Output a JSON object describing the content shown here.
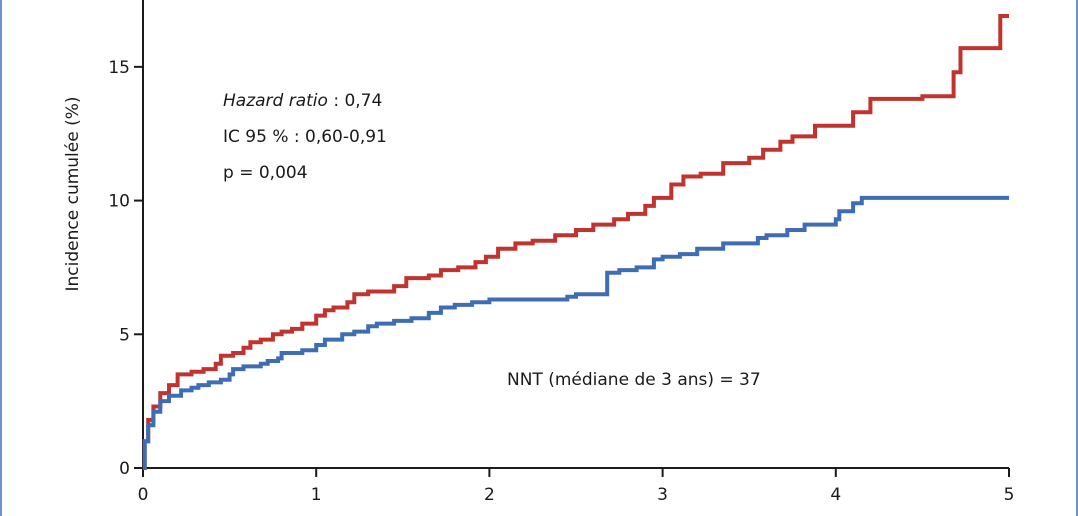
{
  "chart_data": {
    "type": "line",
    "step": true,
    "ylabel": "Incidence cumulée (%)",
    "xlabel": "",
    "xlim": [
      0,
      5
    ],
    "ylim": [
      0,
      17.5
    ],
    "x_ticks": [
      "0",
      "1",
      "2",
      "3",
      "4",
      "5"
    ],
    "y_ticks": [
      "0",
      "5",
      "10",
      "15"
    ],
    "colors": {
      "red": "#c0332e",
      "blue": "#3e6db5"
    },
    "annotations": {
      "hazard_ratio_label": "Hazard ratio",
      "hazard_ratio_value": " : 0,74",
      "ci": "IC 95 % : 0,60-0,91",
      "p": "p = 0,004",
      "nnt": "NNT (médiane de 3 ans) = 37"
    },
    "series": [
      {
        "color": "red",
        "points": [
          [
            0,
            0
          ],
          [
            0.01,
            1.0
          ],
          [
            0.03,
            1.8
          ],
          [
            0.06,
            2.3
          ],
          [
            0.1,
            2.8
          ],
          [
            0.15,
            3.1
          ],
          [
            0.2,
            3.5
          ],
          [
            0.28,
            3.6
          ],
          [
            0.35,
            3.7
          ],
          [
            0.42,
            3.9
          ],
          [
            0.45,
            4.2
          ],
          [
            0.52,
            4.3
          ],
          [
            0.58,
            4.5
          ],
          [
            0.62,
            4.7
          ],
          [
            0.68,
            4.8
          ],
          [
            0.75,
            5.0
          ],
          [
            0.8,
            5.1
          ],
          [
            0.86,
            5.2
          ],
          [
            0.92,
            5.4
          ],
          [
            1.0,
            5.7
          ],
          [
            1.05,
            5.9
          ],
          [
            1.1,
            6.0
          ],
          [
            1.18,
            6.2
          ],
          [
            1.22,
            6.5
          ],
          [
            1.3,
            6.6
          ],
          [
            1.45,
            6.8
          ],
          [
            1.52,
            7.1
          ],
          [
            1.65,
            7.2
          ],
          [
            1.72,
            7.4
          ],
          [
            1.82,
            7.5
          ],
          [
            1.92,
            7.7
          ],
          [
            1.98,
            7.9
          ],
          [
            2.05,
            8.2
          ],
          [
            2.15,
            8.4
          ],
          [
            2.25,
            8.5
          ],
          [
            2.38,
            8.7
          ],
          [
            2.5,
            8.9
          ],
          [
            2.6,
            9.1
          ],
          [
            2.72,
            9.3
          ],
          [
            2.8,
            9.5
          ],
          [
            2.9,
            9.8
          ],
          [
            2.95,
            10.1
          ],
          [
            3.05,
            10.6
          ],
          [
            3.12,
            10.9
          ],
          [
            3.22,
            11.0
          ],
          [
            3.35,
            11.4
          ],
          [
            3.5,
            11.6
          ],
          [
            3.58,
            11.9
          ],
          [
            3.68,
            12.2
          ],
          [
            3.75,
            12.4
          ],
          [
            3.88,
            12.8
          ],
          [
            4.1,
            13.3
          ],
          [
            4.2,
            13.8
          ],
          [
            4.5,
            13.9
          ],
          [
            4.68,
            14.8
          ],
          [
            4.72,
            15.7
          ],
          [
            4.95,
            16.9
          ],
          [
            5.0,
            16.9
          ]
        ]
      },
      {
        "color": "blue",
        "points": [
          [
            0,
            0
          ],
          [
            0.01,
            1.0
          ],
          [
            0.03,
            1.6
          ],
          [
            0.06,
            2.1
          ],
          [
            0.1,
            2.5
          ],
          [
            0.15,
            2.7
          ],
          [
            0.22,
            2.9
          ],
          [
            0.28,
            3.0
          ],
          [
            0.32,
            3.1
          ],
          [
            0.38,
            3.2
          ],
          [
            0.45,
            3.3
          ],
          [
            0.5,
            3.5
          ],
          [
            0.52,
            3.7
          ],
          [
            0.58,
            3.8
          ],
          [
            0.68,
            3.9
          ],
          [
            0.72,
            4.0
          ],
          [
            0.78,
            4.1
          ],
          [
            0.8,
            4.3
          ],
          [
            0.92,
            4.4
          ],
          [
            1.0,
            4.6
          ],
          [
            1.05,
            4.8
          ],
          [
            1.15,
            5.0
          ],
          [
            1.22,
            5.1
          ],
          [
            1.3,
            5.3
          ],
          [
            1.35,
            5.4
          ],
          [
            1.45,
            5.5
          ],
          [
            1.55,
            5.6
          ],
          [
            1.65,
            5.8
          ],
          [
            1.72,
            6.0
          ],
          [
            1.8,
            6.1
          ],
          [
            1.9,
            6.2
          ],
          [
            2.0,
            6.3
          ],
          [
            2.45,
            6.4
          ],
          [
            2.5,
            6.5
          ],
          [
            2.68,
            7.3
          ],
          [
            2.75,
            7.4
          ],
          [
            2.85,
            7.5
          ],
          [
            2.95,
            7.8
          ],
          [
            3.0,
            7.9
          ],
          [
            3.1,
            8.0
          ],
          [
            3.2,
            8.2
          ],
          [
            3.35,
            8.4
          ],
          [
            3.55,
            8.6
          ],
          [
            3.6,
            8.7
          ],
          [
            3.72,
            8.9
          ],
          [
            3.82,
            9.1
          ],
          [
            4.0,
            9.3
          ],
          [
            4.02,
            9.6
          ],
          [
            4.1,
            9.9
          ],
          [
            4.15,
            10.1
          ],
          [
            5.0,
            10.1
          ]
        ]
      }
    ]
  }
}
